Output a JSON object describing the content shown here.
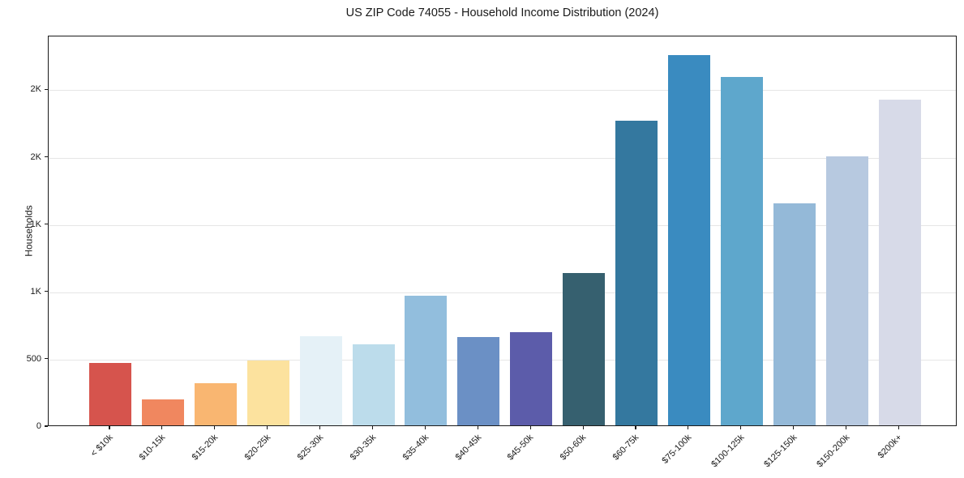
{
  "page": {
    "background_color": "#ffffff"
  },
  "chart_data": {
    "type": "bar",
    "title": "US ZIP Code 74055 - Household Income Distribution (2024)",
    "xlabel": "",
    "ylabel": "Households",
    "categories": [
      "< $10k",
      "$10-15k",
      "$15-20k",
      "$20-25k",
      "$25-30k",
      "$30-35k",
      "$35-40k",
      "$40-45k",
      "$45-50k",
      "$50-60k",
      "$60-75k",
      "$75-100k",
      "$100-125k",
      "$125-150k",
      "$150-200k",
      "$200k+"
    ],
    "values": [
      465,
      195,
      315,
      480,
      660,
      600,
      965,
      655,
      690,
      1130,
      2260,
      2750,
      2590,
      1650,
      2000,
      2420
    ],
    "bar_colors": [
      "#d6544d",
      "#f0875f",
      "#f9b671",
      "#fce29e",
      "#e5f1f7",
      "#bcdceb",
      "#92bedd",
      "#6b90c5",
      "#5c5caa",
      "#36606f",
      "#34789f",
      "#3a8bc0",
      "#5ea7cc",
      "#94b9d8",
      "#b7c9e0",
      "#d7dae8"
    ],
    "ylim": [
      0,
      2900
    ],
    "yticks": {
      "values": [
        0,
        500,
        1000,
        1500,
        2000,
        2500
      ],
      "labels": [
        "0",
        "500",
        "1K",
        "1K",
        "2K",
        "2K"
      ]
    },
    "grid": "horizontal",
    "gridline_color": "#e6e6e6",
    "frame_color": "#1a1a1a",
    "text_color": "#1a1a1a",
    "x_tick_rotation_deg": 45,
    "legend": null
  }
}
